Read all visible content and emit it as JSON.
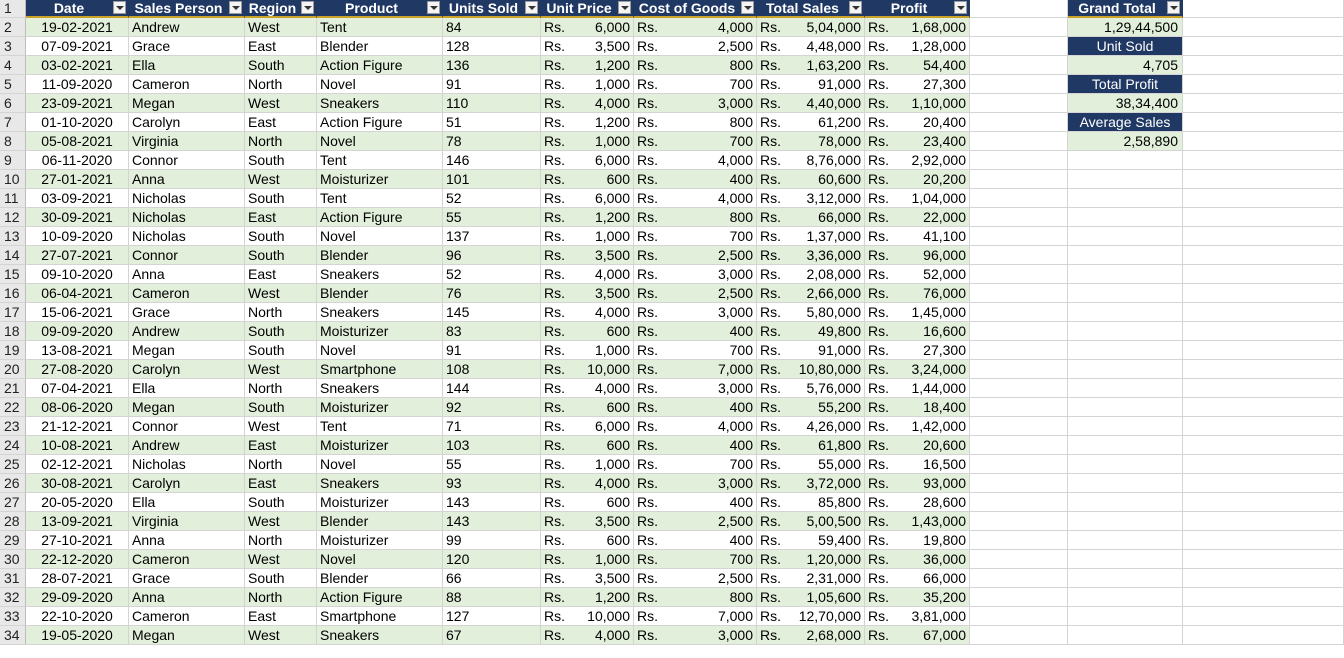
{
  "currency": "Rs.",
  "headers": [
    "Date",
    "Sales Person",
    "Region",
    "Product",
    "Units Sold",
    "Unit Price",
    "Cost of Goods",
    "Total Sales",
    "Profit"
  ],
  "rows": [
    [
      "19-02-2021",
      "Andrew",
      "West",
      "Tent",
      "84",
      "6,000",
      "4,000",
      "5,04,000",
      "1,68,000"
    ],
    [
      "07-09-2021",
      "Grace",
      "East",
      "Blender",
      "128",
      "3,500",
      "2,500",
      "4,48,000",
      "1,28,000"
    ],
    [
      "03-02-2021",
      "Ella",
      "South",
      "Action Figure",
      "136",
      "1,200",
      "800",
      "1,63,200",
      "54,400"
    ],
    [
      "11-09-2020",
      "Cameron",
      "North",
      "Novel",
      "91",
      "1,000",
      "700",
      "91,000",
      "27,300"
    ],
    [
      "23-09-2021",
      "Megan",
      "West",
      "Sneakers",
      "110",
      "4,000",
      "3,000",
      "4,40,000",
      "1,10,000"
    ],
    [
      "01-10-2020",
      "Carolyn",
      "East",
      "Action Figure",
      "51",
      "1,200",
      "800",
      "61,200",
      "20,400"
    ],
    [
      "05-08-2021",
      "Virginia",
      "North",
      "Novel",
      "78",
      "1,000",
      "700",
      "78,000",
      "23,400"
    ],
    [
      "06-11-2020",
      "Connor",
      "South",
      "Tent",
      "146",
      "6,000",
      "4,000",
      "8,76,000",
      "2,92,000"
    ],
    [
      "27-01-2021",
      "Anna",
      "West",
      "Moisturizer",
      "101",
      "600",
      "400",
      "60,600",
      "20,200"
    ],
    [
      "03-09-2021",
      "Nicholas",
      "South",
      "Tent",
      "52",
      "6,000",
      "4,000",
      "3,12,000",
      "1,04,000"
    ],
    [
      "30-09-2021",
      "Nicholas",
      "East",
      "Action Figure",
      "55",
      "1,200",
      "800",
      "66,000",
      "22,000"
    ],
    [
      "10-09-2020",
      "Nicholas",
      "South",
      "Novel",
      "137",
      "1,000",
      "700",
      "1,37,000",
      "41,100"
    ],
    [
      "27-07-2021",
      "Connor",
      "South",
      "Blender",
      "96",
      "3,500",
      "2,500",
      "3,36,000",
      "96,000"
    ],
    [
      "09-10-2020",
      "Anna",
      "East",
      "Sneakers",
      "52",
      "4,000",
      "3,000",
      "2,08,000",
      "52,000"
    ],
    [
      "06-04-2021",
      "Cameron",
      "West",
      "Blender",
      "76",
      "3,500",
      "2,500",
      "2,66,000",
      "76,000"
    ],
    [
      "15-06-2021",
      "Grace",
      "North",
      "Sneakers",
      "145",
      "4,000",
      "3,000",
      "5,80,000",
      "1,45,000"
    ],
    [
      "09-09-2020",
      "Andrew",
      "South",
      "Moisturizer",
      "83",
      "600",
      "400",
      "49,800",
      "16,600"
    ],
    [
      "13-08-2021",
      "Megan",
      "South",
      "Novel",
      "91",
      "1,000",
      "700",
      "91,000",
      "27,300"
    ],
    [
      "27-08-2020",
      "Carolyn",
      "West",
      "Smartphone",
      "108",
      "10,000",
      "7,000",
      "10,80,000",
      "3,24,000"
    ],
    [
      "07-04-2021",
      "Ella",
      "North",
      "Sneakers",
      "144",
      "4,000",
      "3,000",
      "5,76,000",
      "1,44,000"
    ],
    [
      "08-06-2020",
      "Megan",
      "South",
      "Moisturizer",
      "92",
      "600",
      "400",
      "55,200",
      "18,400"
    ],
    [
      "21-12-2021",
      "Connor",
      "West",
      "Tent",
      "71",
      "6,000",
      "4,000",
      "4,26,000",
      "1,42,000"
    ],
    [
      "10-08-2021",
      "Andrew",
      "East",
      "Moisturizer",
      "103",
      "600",
      "400",
      "61,800",
      "20,600"
    ],
    [
      "02-12-2021",
      "Nicholas",
      "North",
      "Novel",
      "55",
      "1,000",
      "700",
      "55,000",
      "16,500"
    ],
    [
      "30-08-2021",
      "Carolyn",
      "East",
      "Sneakers",
      "93",
      "4,000",
      "3,000",
      "3,72,000",
      "93,000"
    ],
    [
      "20-05-2020",
      "Ella",
      "South",
      "Moisturizer",
      "143",
      "600",
      "400",
      "85,800",
      "28,600"
    ],
    [
      "13-09-2021",
      "Virginia",
      "West",
      "Blender",
      "143",
      "3,500",
      "2,500",
      "5,00,500",
      "1,43,000"
    ],
    [
      "27-10-2021",
      "Anna",
      "North",
      "Moisturizer",
      "99",
      "600",
      "400",
      "59,400",
      "19,800"
    ],
    [
      "22-12-2020",
      "Cameron",
      "West",
      "Novel",
      "120",
      "1,000",
      "700",
      "1,20,000",
      "36,000"
    ],
    [
      "28-07-2021",
      "Grace",
      "South",
      "Blender",
      "66",
      "3,500",
      "2,500",
      "2,31,000",
      "66,000"
    ],
    [
      "29-09-2020",
      "Anna",
      "North",
      "Action Figure",
      "88",
      "1,200",
      "800",
      "1,05,600",
      "35,200"
    ],
    [
      "22-10-2020",
      "Cameron",
      "East",
      "Smartphone",
      "127",
      "10,000",
      "7,000",
      "12,70,000",
      "3,81,000"
    ],
    [
      "19-05-2020",
      "Megan",
      "West",
      "Sneakers",
      "67",
      "4,000",
      "3,000",
      "2,68,000",
      "67,000"
    ]
  ],
  "summary": [
    {
      "title": "Grand Total",
      "value": "1,29,44,500"
    },
    {
      "title": "Unit Sold",
      "value": "4,705"
    },
    {
      "title": "Total Profit",
      "value": "38,34,400"
    },
    {
      "title": "Average Sales",
      "value": "2,58,890"
    }
  ]
}
